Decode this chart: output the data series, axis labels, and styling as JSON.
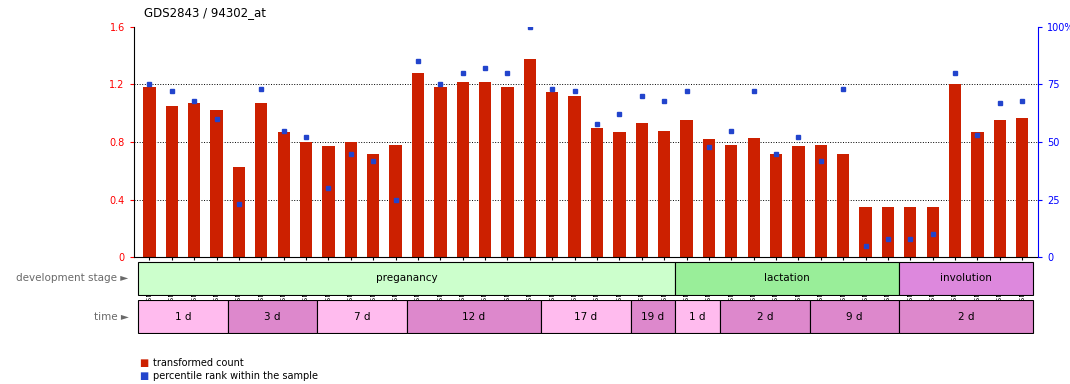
{
  "title": "GDS2843 / 94302_at",
  "samples": [
    "GSM202666",
    "GSM202667",
    "GSM202668",
    "GSM202669",
    "GSM202670",
    "GSM202671",
    "GSM202672",
    "GSM202673",
    "GSM202674",
    "GSM202675",
    "GSM202676",
    "GSM202677",
    "GSM202678",
    "GSM202679",
    "GSM202680",
    "GSM202681",
    "GSM202682",
    "GSM202683",
    "GSM202684",
    "GSM202685",
    "GSM202686",
    "GSM202687",
    "GSM202688",
    "GSM202689",
    "GSM202690",
    "GSM202691",
    "GSM202692",
    "GSM202693",
    "GSM202694",
    "GSM202695",
    "GSM202696",
    "GSM202697",
    "GSM202698",
    "GSM202699",
    "GSM202700",
    "GSM202701",
    "GSM202702",
    "GSM202703",
    "GSM202704",
    "GSM202705"
  ],
  "red_values": [
    1.18,
    1.05,
    1.07,
    1.02,
    0.63,
    1.07,
    0.87,
    0.8,
    0.77,
    0.8,
    0.72,
    0.78,
    1.28,
    1.18,
    1.22,
    1.22,
    1.18,
    1.38,
    1.15,
    1.12,
    0.9,
    0.87,
    0.93,
    0.88,
    0.95,
    0.82,
    0.78,
    0.83,
    0.72,
    0.77,
    0.78,
    0.72,
    0.35,
    0.35,
    0.35,
    0.35,
    1.2,
    0.87,
    0.95,
    0.97
  ],
  "blue_percentiles": [
    75,
    72,
    68,
    60,
    23,
    73,
    55,
    52,
    30,
    45,
    42,
    25,
    85,
    75,
    80,
    82,
    80,
    100,
    73,
    72,
    58,
    62,
    70,
    68,
    72,
    48,
    55,
    72,
    45,
    52,
    42,
    73,
    5,
    8,
    8,
    10,
    80,
    53,
    67,
    68
  ],
  "red_color": "#cc2000",
  "blue_color": "#2244cc",
  "ylim_left": [
    0,
    1.6
  ],
  "ylim_right": [
    0,
    100
  ],
  "yticks_left": [
    0,
    0.4,
    0.8,
    1.2,
    1.6
  ],
  "yticks_right": [
    0,
    25,
    50,
    75,
    100
  ],
  "bar_width": 0.55,
  "development_stages": [
    {
      "label": "preganancy",
      "start": 0,
      "end": 24,
      "color": "#ccffcc"
    },
    {
      "label": "lactation",
      "start": 24,
      "end": 34,
      "color": "#99ee99"
    },
    {
      "label": "involution",
      "start": 34,
      "end": 40,
      "color": "#dd88dd"
    }
  ],
  "time_periods": [
    {
      "label": "1 d",
      "start": 0,
      "end": 4
    },
    {
      "label": "3 d",
      "start": 4,
      "end": 8
    },
    {
      "label": "7 d",
      "start": 8,
      "end": 12
    },
    {
      "label": "12 d",
      "start": 12,
      "end": 18
    },
    {
      "label": "17 d",
      "start": 18,
      "end": 22
    },
    {
      "label": "19 d",
      "start": 22,
      "end": 24
    },
    {
      "label": "1 d",
      "start": 24,
      "end": 26
    },
    {
      "label": "2 d",
      "start": 26,
      "end": 30
    },
    {
      "label": "9 d",
      "start": 30,
      "end": 34
    },
    {
      "label": "2 d",
      "start": 34,
      "end": 40
    }
  ],
  "time_colors": [
    "#ffbbee",
    "#dd88cc",
    "#ffbbee",
    "#dd88cc",
    "#ffbbee",
    "#dd88cc",
    "#ffbbee",
    "#dd88cc",
    "#dd88cc",
    "#dd88cc"
  ],
  "legend_items": [
    {
      "label": "transformed count",
      "color": "#cc2000"
    },
    {
      "label": "percentile rank within the sample",
      "color": "#2244cc"
    }
  ],
  "xlabel_stage": "development stage",
  "xlabel_time": "time",
  "bg_color": "#ffffff"
}
